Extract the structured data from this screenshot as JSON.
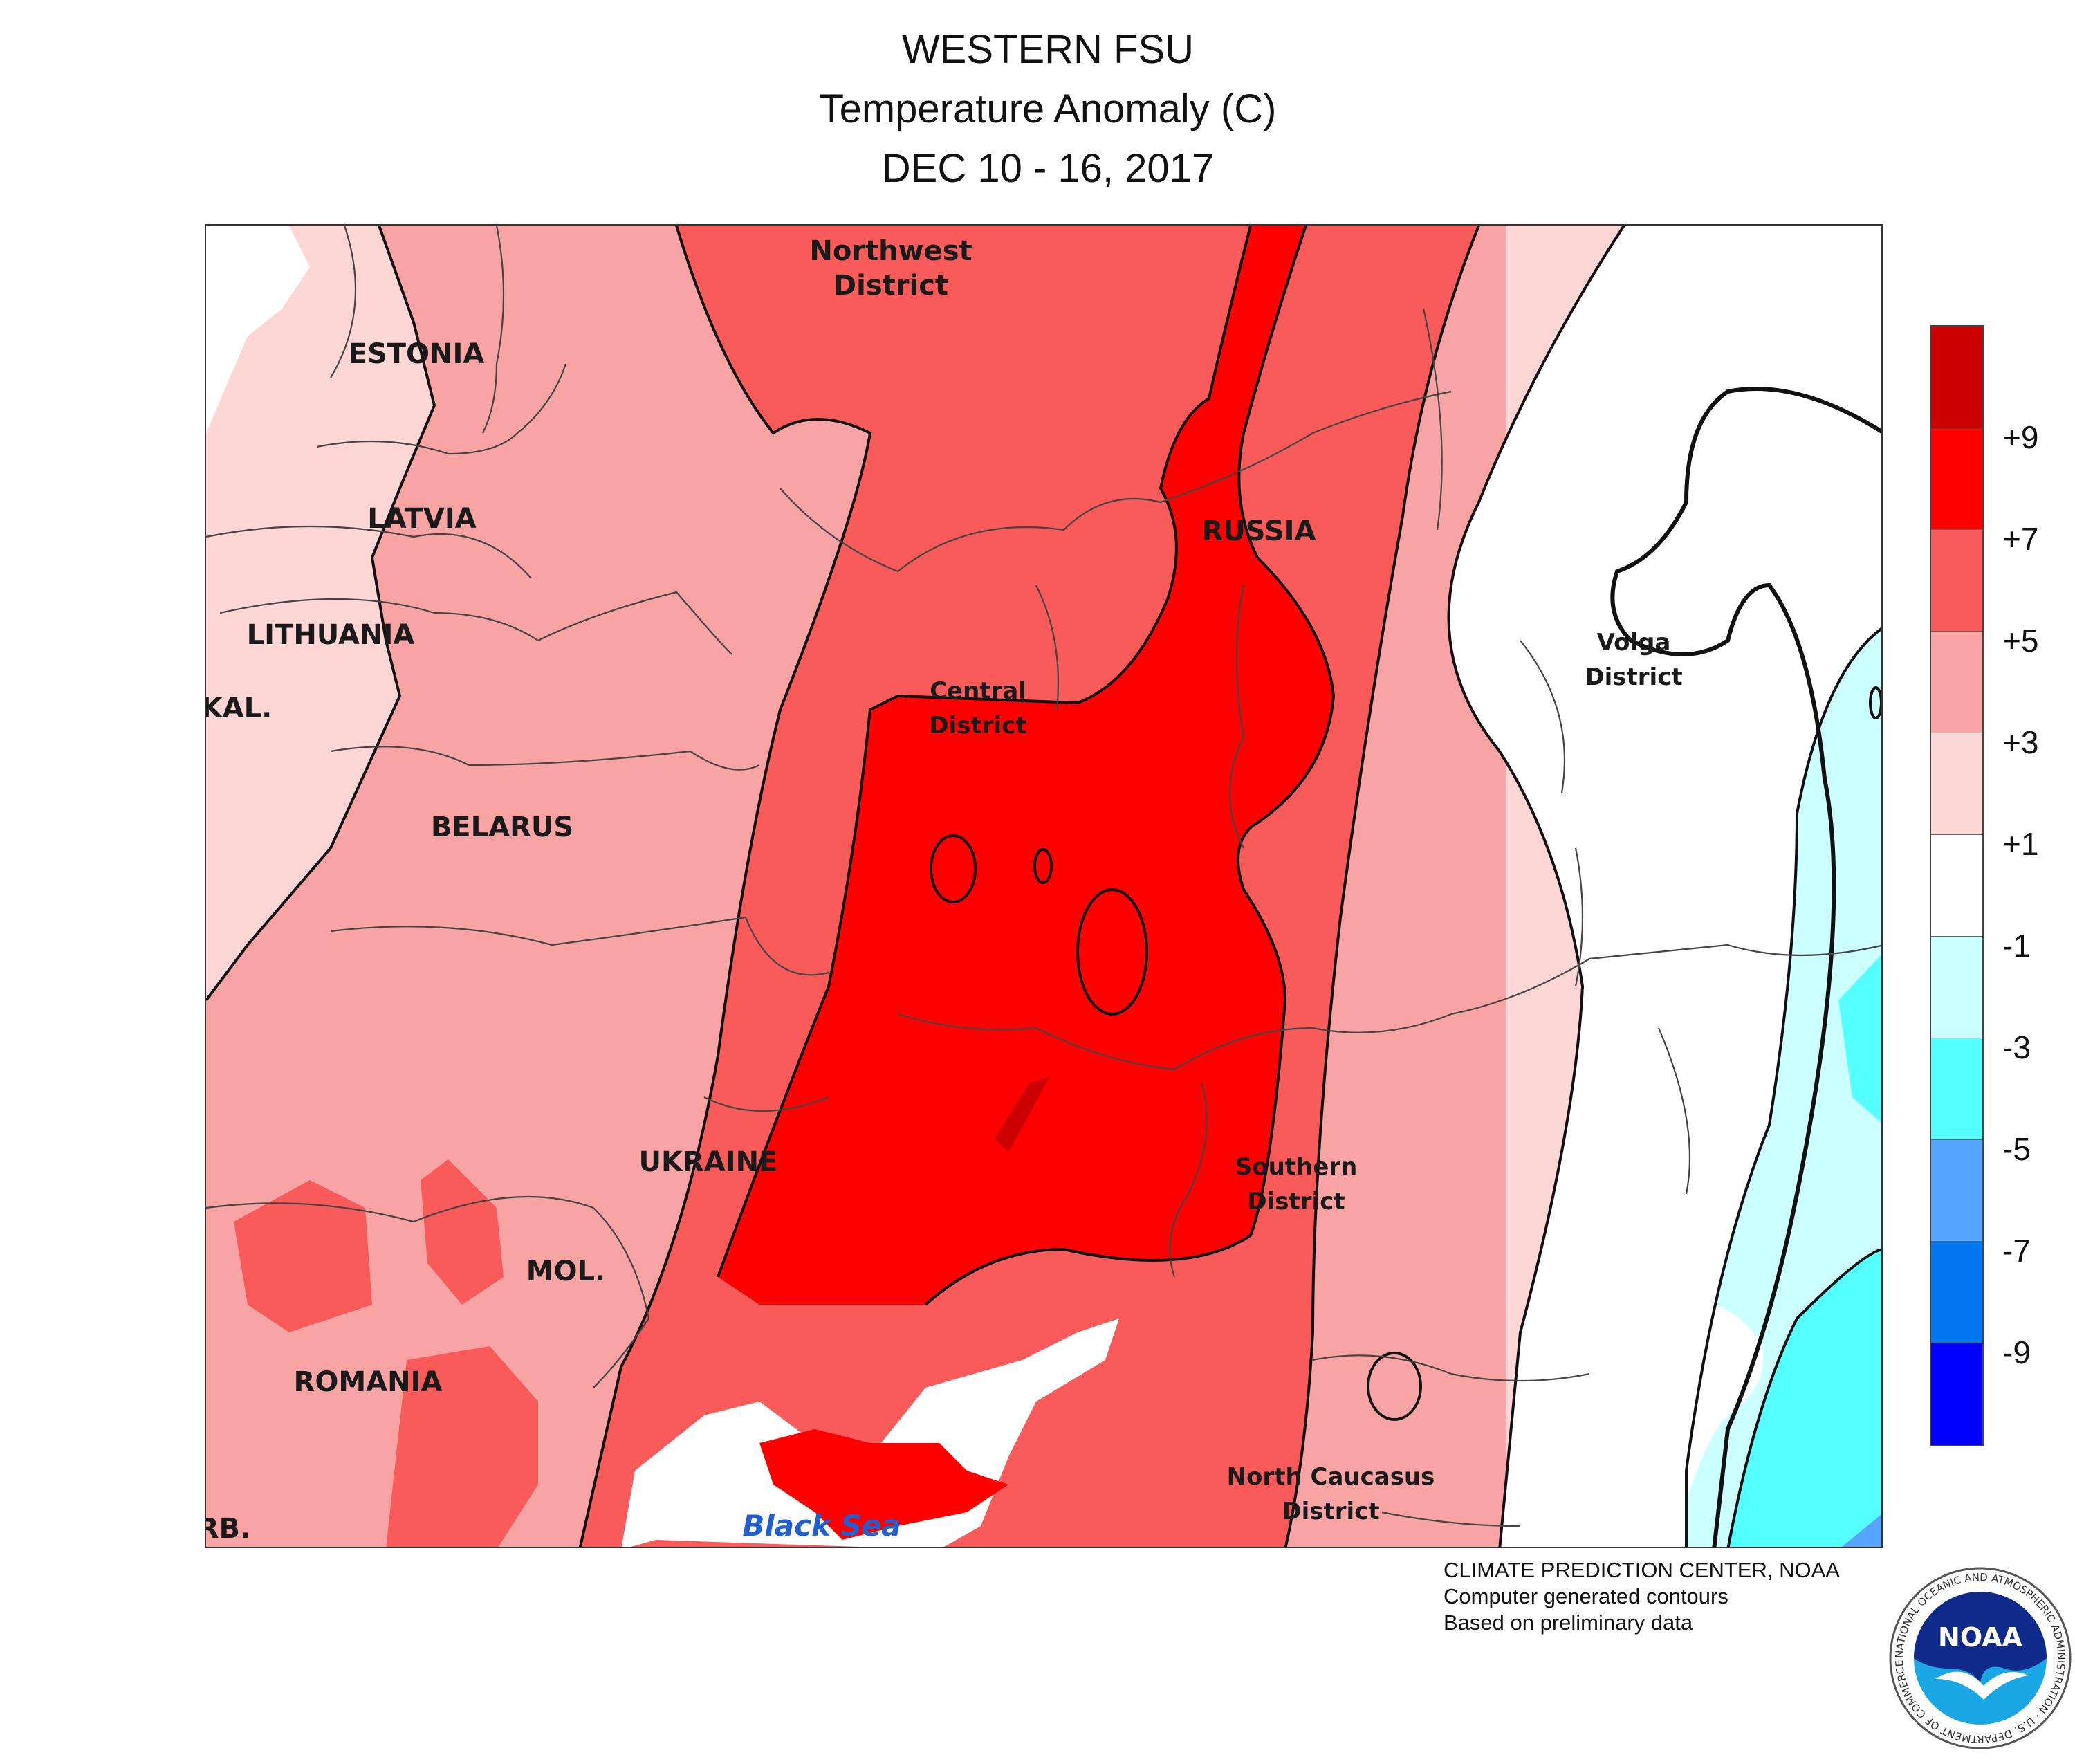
{
  "header": {
    "title_line1": "WESTERN FSU",
    "title_line2": "Temperature Anomaly (C)",
    "title_line3": "DEC 10 - 16, 2017"
  },
  "map": {
    "labels": {
      "northwest": "Northwest\nDistrict",
      "estonia": "ESTONIA",
      "latvia": "LATVIA",
      "lithuania": "LITHUANIA",
      "kal": "KAL.",
      "belarus": "BELARUS",
      "russia": "RUSSIA",
      "central": "Central\nDistrict",
      "volga": "Volga\nDistrict",
      "ukraine": "UKRAINE",
      "southern": "Southern\nDistrict",
      "mol": "MOL.",
      "romania": "ROMANIA",
      "north_caucasus": "North Caucasus\nDistrict",
      "serb": "RB.",
      "black_sea": "Black Sea"
    },
    "colors": {
      "lt_m9": "#0000ff",
      "m9_m7": "#0077ee",
      "m7_m5": "#55a5ff",
      "m5_m3": "#55ffff",
      "m3_m1": "#ccffff",
      "m1_p1": "#ffffff",
      "p1_p3": "#ffd6d6",
      "p3_p5": "#f9a4a4",
      "p5_p7": "#f95a5a",
      "p7_p9": "#ff0000",
      "gt_p9": "#cc0000"
    }
  },
  "legend": {
    "ticks": [
      "+9",
      "+7",
      "+5",
      "+3",
      "+1",
      "-1",
      "-3",
      "-5",
      "-7",
      "-9"
    ]
  },
  "credits": {
    "line1": "CLIMATE PREDICTION CENTER, NOAA",
    "line2": "Computer generated contours",
    "line3": "Based on preliminary data"
  },
  "logo": {
    "text": "NOAA",
    "ring_text": "NATIONAL OCEANIC AND ATMOSPHERIC ADMINISTRATION · U.S. DEPARTMENT OF COMMERCE"
  }
}
